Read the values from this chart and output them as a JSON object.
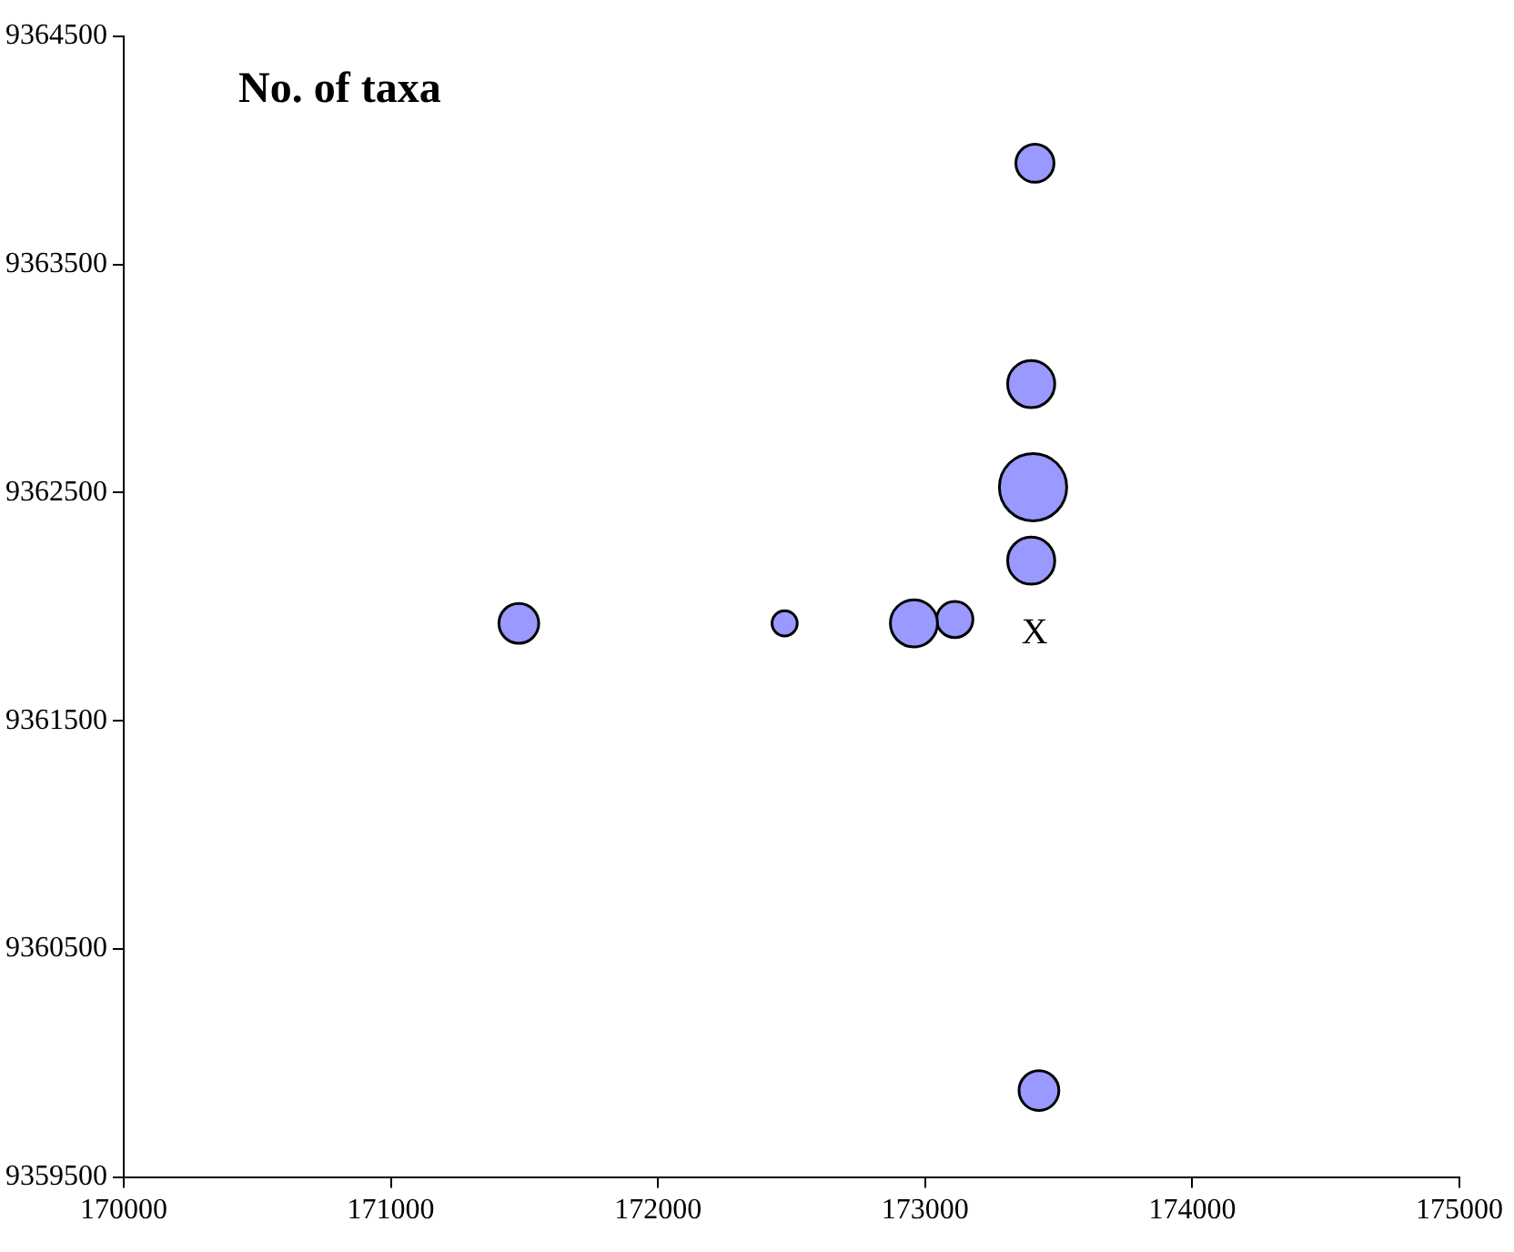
{
  "chart_data": {
    "type": "bubble",
    "title": "No. of taxa",
    "x": [
      173411,
      173397,
      173404,
      173397,
      173111,
      172958,
      172474,
      171479,
      173426
    ],
    "values": [
      9363944,
      9362976,
      9362524,
      9362202,
      9361944,
      9361927,
      9361927,
      9361927,
      9359879
    ],
    "sizes": [
      0.32,
      0.49,
      1,
      0.49,
      0.29,
      0.49,
      0.14,
      0.35,
      0.35
    ],
    "color": "#9999ff",
    "xlim": [
      170000,
      175000
    ],
    "xticks": [
      170000,
      171000,
      172000,
      173000,
      174000,
      175000
    ],
    "ylim": [
      9359500,
      9364500
    ],
    "yticks": [
      9359500,
      9360500,
      9361500,
      9362500,
      9363500,
      9364500
    ],
    "grid": false,
    "legend": false,
    "annotations": [
      "X"
    ]
  }
}
